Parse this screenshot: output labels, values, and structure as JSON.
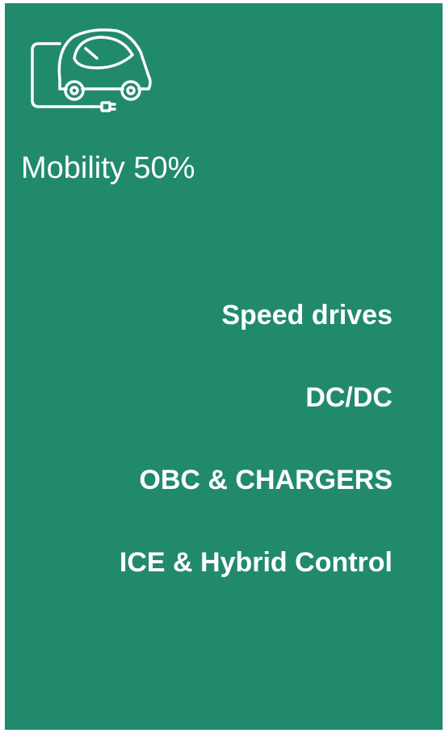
{
  "title": "Mobility 50%",
  "items": [
    "Speed drives",
    "DC/DC",
    "OBC & CHARGERS",
    "ICE & Hybrid Control"
  ]
}
